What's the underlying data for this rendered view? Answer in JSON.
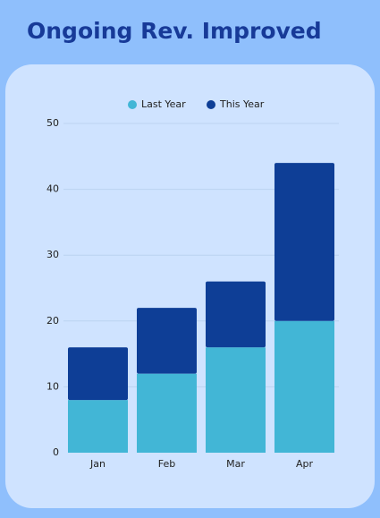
{
  "chart_data": {
    "type": "bar",
    "stacked": true,
    "title": "Ongoing Rev. Improved",
    "categories": [
      "Jan",
      "Feb",
      "Mar",
      "Apr"
    ],
    "series": [
      {
        "name": "Last Year",
        "color": "#42b6d6",
        "values": [
          8,
          12,
          16,
          20
        ]
      },
      {
        "name": "This Year",
        "color": "#0e3e96",
        "values": [
          8,
          10,
          10,
          24
        ]
      }
    ],
    "ylim": [
      0,
      50
    ],
    "yticks": [
      0,
      10,
      20,
      30,
      40,
      50
    ],
    "grid": true
  }
}
